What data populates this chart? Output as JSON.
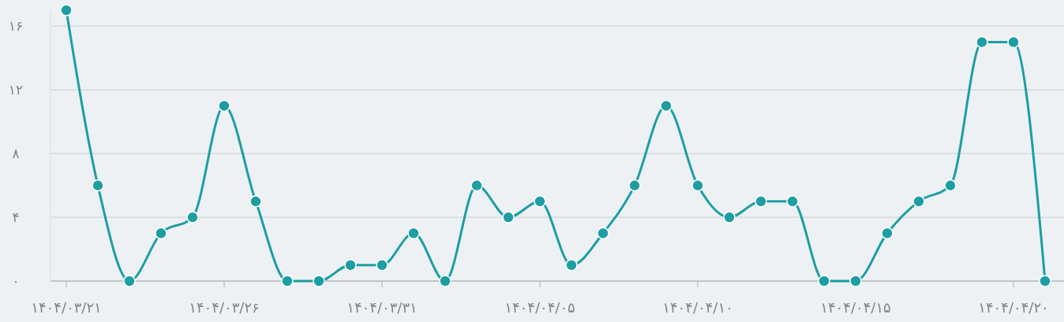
{
  "chart_data": {
    "type": "line",
    "categories": [
      "۱۴۰۴/۰۳/۲۱",
      null,
      null,
      null,
      null,
      "۱۴۰۴/۰۳/۲۶",
      null,
      null,
      null,
      null,
      "۱۴۰۴/۰۳/۳۱",
      null,
      null,
      null,
      null,
      "۱۴۰۴/۰۴/۰۵",
      null,
      null,
      null,
      null,
      "۱۴۰۴/۰۴/۱۰",
      null,
      null,
      null,
      null,
      "۱۴۰۴/۰۴/۱۵",
      null,
      null,
      null,
      null,
      "۱۴۰۴/۰۴/۲۰",
      null
    ],
    "series": [
      {
        "color": "#1c9ea3",
        "values": [
          17,
          6,
          0,
          3,
          4,
          11,
          5,
          0,
          0,
          1,
          1,
          3,
          0,
          6,
          4,
          5,
          1,
          3,
          6,
          11,
          6,
          4,
          5,
          5,
          0,
          0,
          3,
          5,
          6,
          15,
          15,
          0
        ]
      }
    ],
    "ylim": [
      0,
      17
    ],
    "yticks": [
      {
        "value": 0,
        "label": "۰"
      },
      {
        "value": 4,
        "label": "۴"
      },
      {
        "value": 8,
        "label": "۸"
      },
      {
        "value": 12,
        "label": "۱۲"
      },
      {
        "value": 16,
        "label": "۱۶"
      }
    ],
    "grid": "y",
    "marker": "circle",
    "line_style": "solid"
  }
}
